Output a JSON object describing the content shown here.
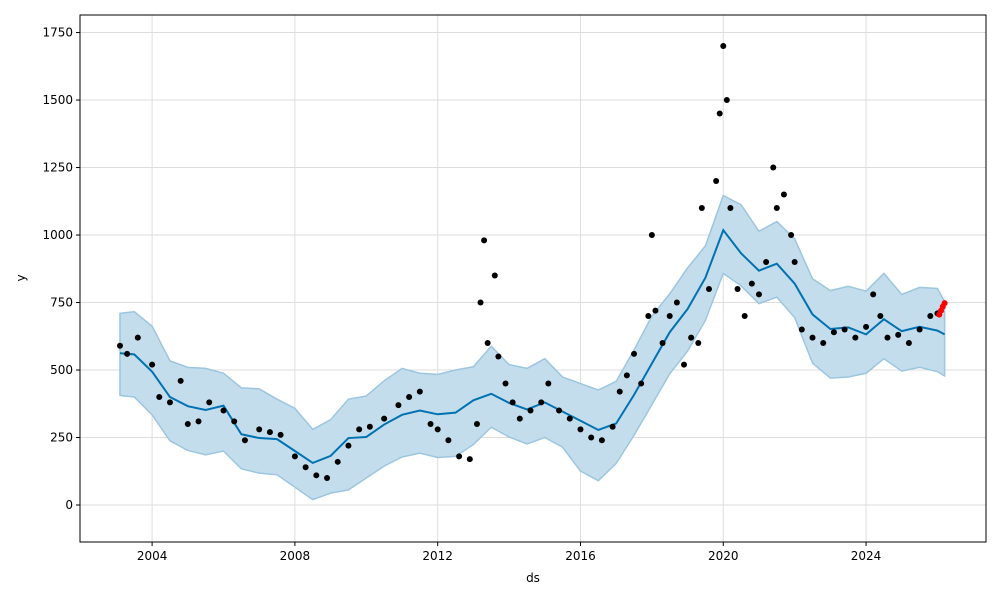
{
  "chart_data": {
    "type": "line",
    "title": "",
    "xlabel": "ds",
    "ylabel": "y",
    "xlim": [
      2001.98,
      2027.36
    ],
    "ylim": [
      -137,
      1815
    ],
    "grid": true,
    "x_ticks": [
      2004,
      2008,
      2012,
      2016,
      2020,
      2024
    ],
    "y_ticks": [
      0,
      250,
      500,
      750,
      1000,
      1250,
      1500,
      1750
    ],
    "colors": {
      "forecast": "#0072B2",
      "band": "#c4ddec",
      "band_edge": "#9cc6e0",
      "observed": "#000000",
      "recent": "#ff0000",
      "grid": "#dddddd"
    },
    "forecast": {
      "x": [
        2003.1,
        2003.5,
        2004,
        2004.5,
        2005,
        2005.5,
        2006,
        2006.5,
        2007,
        2007.5,
        2008,
        2008.5,
        2009,
        2009.5,
        2010,
        2010.5,
        2011,
        2011.5,
        2012,
        2012.5,
        2013,
        2013.5,
        2014,
        2014.5,
        2015,
        2015.5,
        2016,
        2016.5,
        2017,
        2017.5,
        2018,
        2018.5,
        2019,
        2019.5,
        2020,
        2020.5,
        2021,
        2021.5,
        2022,
        2022.5,
        2023,
        2023.5,
        2024,
        2024.5,
        2025,
        2025.5,
        2026,
        2026.2
      ],
      "yhat": [
        580,
        570,
        500,
        400,
        360,
        340,
        350,
        280,
        260,
        250,
        200,
        150,
        170,
        230,
        270,
        310,
        340,
        350,
        330,
        330,
        370,
        430,
        390,
        360,
        380,
        340,
        300,
        260,
        320,
        420,
        530,
        640,
        720,
        830,
        1000,
        950,
        880,
        900,
        820,
        700,
        640,
        640,
        650,
        700,
        650,
        660,
        640,
        620
      ],
      "band_halfwidth": 150
    },
    "observed": {
      "x": [
        2003.1,
        2003.3,
        2003.6,
        2004,
        2004.2,
        2004.5,
        2004.8,
        2005,
        2005.3,
        2005.6,
        2006,
        2006.3,
        2006.6,
        2007,
        2007.3,
        2007.6,
        2008,
        2008.3,
        2008.6,
        2008.9,
        2009.2,
        2009.5,
        2009.8,
        2010.1,
        2010.5,
        2010.9,
        2011.2,
        2011.5,
        2011.8,
        2012,
        2012.3,
        2012.6,
        2012.9,
        2013.1,
        2013.2,
        2013.3,
        2013.4,
        2013.6,
        2013.7,
        2013.9,
        2014.1,
        2014.3,
        2014.6,
        2014.9,
        2015.1,
        2015.4,
        2015.7,
        2016,
        2016.3,
        2016.6,
        2016.9,
        2017.1,
        2017.3,
        2017.5,
        2017.7,
        2017.9,
        2018,
        2018.1,
        2018.3,
        2018.5,
        2018.7,
        2018.9,
        2019.1,
        2019.3,
        2019.4,
        2019.6,
        2019.8,
        2019.9,
        2020,
        2020.1,
        2020.2,
        2020.4,
        2020.6,
        2020.8,
        2021,
        2021.2,
        2021.4,
        2021.5,
        2021.7,
        2021.9,
        2022,
        2022.2,
        2022.5,
        2022.8,
        2023.1,
        2023.4,
        2023.7,
        2024,
        2024.2,
        2024.4,
        2024.6,
        2024.9,
        2025.2,
        2025.5,
        2025.8,
        2026
      ],
      "y": [
        590,
        560,
        620,
        520,
        400,
        380,
        460,
        300,
        310,
        380,
        350,
        310,
        240,
        280,
        270,
        260,
        180,
        140,
        110,
        100,
        160,
        220,
        280,
        290,
        320,
        370,
        400,
        420,
        300,
        280,
        240,
        180,
        170,
        300,
        750,
        980,
        600,
        850,
        550,
        450,
        380,
        320,
        350,
        380,
        450,
        350,
        320,
        280,
        250,
        240,
        290,
        420,
        480,
        560,
        450,
        700,
        1000,
        720,
        600,
        700,
        750,
        520,
        620,
        600,
        1100,
        800,
        1200,
        1450,
        1700,
        1500,
        1100,
        800,
        700,
        820,
        780,
        900,
        1250,
        1100,
        1150,
        1000,
        900,
        650,
        620,
        600,
        640,
        650,
        620,
        660,
        780,
        700,
        620,
        630,
        600,
        650,
        700,
        710
      ]
    },
    "recent": {
      "x": [
        2026.05,
        2026.1,
        2026.15,
        2026.2
      ],
      "y": [
        705,
        720,
        735,
        748
      ]
    }
  }
}
